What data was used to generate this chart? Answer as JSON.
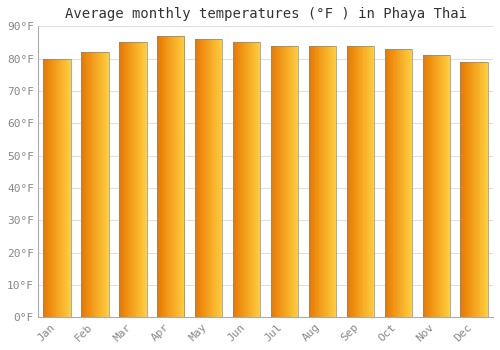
{
  "title": "Average monthly temperatures (°F ) in Phaya Thai",
  "months": [
    "Jan",
    "Feb",
    "Mar",
    "Apr",
    "May",
    "Jun",
    "Jul",
    "Aug",
    "Sep",
    "Oct",
    "Nov",
    "Dec"
  ],
  "values": [
    80,
    82,
    85,
    87,
    86,
    85,
    84,
    84,
    84,
    83,
    81,
    79
  ],
  "bar_color_left": "#E87800",
  "bar_color_right": "#FFD040",
  "background_color": "#FFFFFF",
  "plot_bg_color": "#FFFFFF",
  "grid_color": "#DDDDDD",
  "ylim": [
    0,
    90
  ],
  "yticks": [
    0,
    10,
    20,
    30,
    40,
    50,
    60,
    70,
    80,
    90
  ],
  "ytick_labels": [
    "0°F",
    "10°F",
    "20°F",
    "30°F",
    "40°F",
    "50°F",
    "60°F",
    "70°F",
    "80°F",
    "90°F"
  ],
  "title_fontsize": 10,
  "tick_fontsize": 8,
  "tick_font_color": "#888888",
  "bar_width": 0.72,
  "border_color": "#888888"
}
